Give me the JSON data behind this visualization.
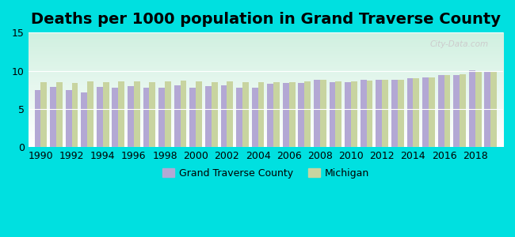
{
  "title": "Deaths per 1000 population in Grand Traverse County",
  "years": [
    1990,
    1991,
    1992,
    1993,
    1994,
    1995,
    1996,
    1997,
    1998,
    1999,
    2000,
    2001,
    2002,
    2003,
    2004,
    2005,
    2006,
    2007,
    2008,
    2009,
    2010,
    2011,
    2012,
    2013,
    2014,
    2015,
    2016,
    2017,
    2018,
    2019
  ],
  "grand_traverse": [
    7.5,
    7.9,
    7.5,
    7.2,
    7.9,
    7.8,
    8.0,
    7.8,
    7.8,
    8.1,
    7.8,
    8.0,
    8.1,
    7.8,
    7.8,
    8.3,
    8.4,
    8.4,
    8.8,
    8.5,
    8.5,
    8.8,
    8.8,
    8.8,
    9.0,
    9.1,
    9.4,
    9.4,
    10.1,
    9.8
  ],
  "michigan": [
    8.5,
    8.5,
    8.4,
    8.6,
    8.5,
    8.6,
    8.6,
    8.5,
    8.6,
    8.7,
    8.6,
    8.5,
    8.6,
    8.5,
    8.5,
    8.5,
    8.5,
    8.6,
    8.8,
    8.6,
    8.6,
    8.7,
    8.8,
    8.8,
    9.0,
    9.1,
    9.4,
    9.5,
    9.8,
    9.9
  ],
  "gtc_color": "#b3a8d4",
  "mi_color": "#c8d4a0",
  "outer_bg": "#00e0e0",
  "ylim": [
    0,
    15
  ],
  "yticks": [
    0,
    5,
    10,
    15
  ],
  "legend_gtc": "Grand Traverse County",
  "legend_mi": "Michigan",
  "title_fontsize": 14,
  "tick_fontsize": 9
}
